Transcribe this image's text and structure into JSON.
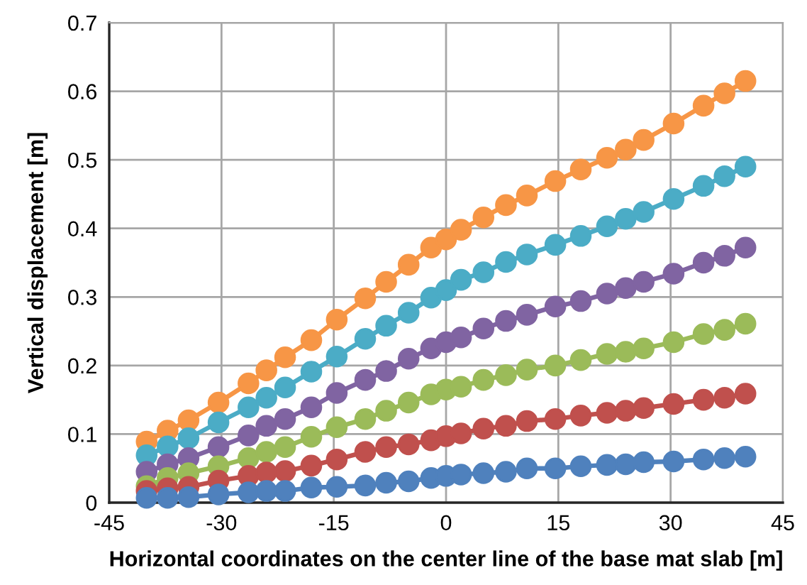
{
  "chart_data": {
    "type": "line",
    "xlabel": "Horizontal coordinates on the center line of the base mat slab [m]",
    "ylabel": "Vertical displacement [m]",
    "x": [
      -40,
      -37.2,
      -34.4,
      -30.4,
      -26.4,
      -24,
      -21.5,
      -18,
      -14.6,
      -10.8,
      -8,
      -5,
      -2,
      0,
      2,
      5,
      8,
      10.8,
      14.6,
      18,
      21.5,
      24,
      26.4,
      30.4,
      34.4,
      37.2,
      40
    ],
    "series": [
      {
        "color": "#f79646",
        "values": [
          0.089,
          0.105,
          0.12,
          0.146,
          0.174,
          0.193,
          0.212,
          0.237,
          0.267,
          0.298,
          0.322,
          0.347,
          0.372,
          0.384,
          0.398,
          0.416,
          0.434,
          0.448,
          0.469,
          0.486,
          0.503,
          0.515,
          0.529,
          0.553,
          0.579,
          0.597,
          0.615
        ]
      },
      {
        "color": "#4bacc6",
        "values": [
          0.069,
          0.082,
          0.094,
          0.117,
          0.139,
          0.153,
          0.168,
          0.191,
          0.213,
          0.239,
          0.258,
          0.277,
          0.299,
          0.31,
          0.325,
          0.336,
          0.351,
          0.362,
          0.376,
          0.389,
          0.403,
          0.414,
          0.424,
          0.443,
          0.462,
          0.476,
          0.49
        ]
      },
      {
        "color": "#8064a2",
        "values": [
          0.045,
          0.056,
          0.065,
          0.081,
          0.098,
          0.112,
          0.122,
          0.139,
          0.16,
          0.179,
          0.192,
          0.21,
          0.225,
          0.234,
          0.241,
          0.254,
          0.265,
          0.274,
          0.286,
          0.294,
          0.305,
          0.313,
          0.322,
          0.334,
          0.35,
          0.36,
          0.372
        ]
      },
      {
        "color": "#9bbb59",
        "values": [
          0.024,
          0.036,
          0.043,
          0.053,
          0.065,
          0.074,
          0.081,
          0.096,
          0.11,
          0.122,
          0.134,
          0.146,
          0.158,
          0.165,
          0.169,
          0.179,
          0.186,
          0.194,
          0.2,
          0.208,
          0.217,
          0.22,
          0.225,
          0.234,
          0.246,
          0.252,
          0.261
        ]
      },
      {
        "color": "#c0504d",
        "values": [
          0.017,
          0.021,
          0.023,
          0.032,
          0.039,
          0.044,
          0.046,
          0.054,
          0.063,
          0.074,
          0.081,
          0.085,
          0.091,
          0.097,
          0.101,
          0.108,
          0.112,
          0.119,
          0.122,
          0.127,
          0.131,
          0.134,
          0.138,
          0.144,
          0.15,
          0.153,
          0.159
        ]
      },
      {
        "color": "#4f81bd",
        "values": [
          0.007,
          0.007,
          0.008,
          0.012,
          0.015,
          0.017,
          0.017,
          0.022,
          0.023,
          0.025,
          0.029,
          0.031,
          0.036,
          0.039,
          0.041,
          0.043,
          0.045,
          0.05,
          0.05,
          0.053,
          0.055,
          0.056,
          0.059,
          0.06,
          0.063,
          0.065,
          0.067
        ]
      }
    ],
    "xlim": [
      -45,
      45
    ],
    "xticks": [
      -45,
      -30,
      -15,
      0,
      15,
      30,
      45
    ],
    "ylim": [
      0,
      0.7
    ],
    "yticks": [
      0,
      0.1,
      0.2,
      0.3,
      0.4,
      0.5,
      0.6,
      0.7
    ],
    "grid": true,
    "marker": "circle",
    "line_style": "solid"
  }
}
